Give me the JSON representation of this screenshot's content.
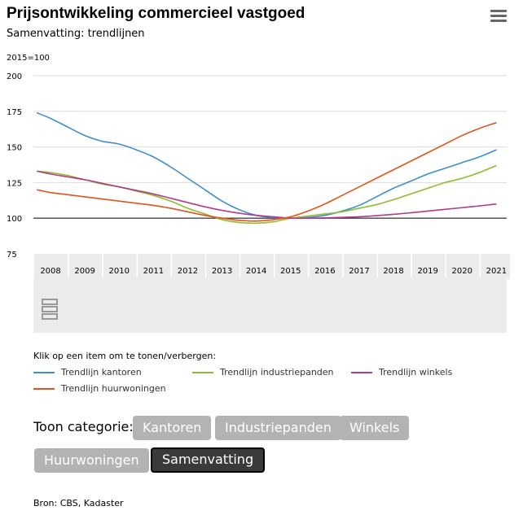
{
  "header": {
    "title": "Prijsontwikkeling commercieel vastgoed",
    "subtitle": "Samenvatting: trendlijnen"
  },
  "menu_icon": "hamburger-menu-icon",
  "chart_data": {
    "type": "line",
    "ylabel": "2015=100",
    "ylim": [
      75,
      200
    ],
    "yticks": [
      "75",
      "100",
      "125",
      "150",
      "175",
      "200"
    ],
    "xlim": [
      2007.5,
      2021.3
    ],
    "xtick_labels": [
      "2008",
      "2009",
      "2010",
      "2011",
      "2012",
      "2013",
      "2014",
      "2015",
      "2016",
      "2017",
      "2018",
      "2019",
      "2020",
      "2021"
    ],
    "xtick_positions": [
      2008,
      2009,
      2010,
      2011,
      2012,
      2013,
      2014,
      2015,
      2016,
      2017,
      2018,
      2019,
      2020,
      2021
    ],
    "reference_line": 100,
    "grid": true,
    "series": [
      {
        "name": "Trendlijn kantoren",
        "color": "#3d8fcb",
        "x": [
          2007.6,
          2008.0,
          2008.5,
          2009.0,
          2009.5,
          2010.0,
          2010.5,
          2011.0,
          2011.5,
          2012.0,
          2012.5,
          2013.0,
          2013.5,
          2014.0,
          2014.5,
          2015.0,
          2015.5,
          2016.0,
          2016.5,
          2017.0,
          2017.5,
          2018.0,
          2018.5,
          2019.0,
          2019.5,
          2020.0,
          2020.5,
          2021.0
        ],
        "y": [
          174,
          170,
          164,
          158,
          154,
          152,
          148,
          143,
          136,
          128,
          120,
          112,
          106,
          102,
          100.5,
          100,
          100.5,
          102,
          105,
          109,
          115,
          121,
          126,
          131,
          135,
          139,
          143,
          148
        ]
      },
      {
        "name": "Trendlijn industriepanden",
        "color": "#8dbd2e",
        "x": [
          2007.6,
          2008.0,
          2008.5,
          2009.0,
          2009.5,
          2010.0,
          2010.5,
          2011.0,
          2011.5,
          2012.0,
          2012.5,
          2013.0,
          2013.5,
          2014.0,
          2014.5,
          2015.0,
          2015.5,
          2016.0,
          2016.5,
          2017.0,
          2017.5,
          2018.0,
          2018.5,
          2019.0,
          2019.5,
          2020.0,
          2020.5,
          2021.0
        ],
        "y": [
          133,
          132,
          130,
          127,
          124,
          122,
          119,
          116,
          112,
          107,
          103,
          99,
          97,
          96.5,
          97.5,
          100,
          101.5,
          103,
          104.5,
          107,
          109.5,
          113,
          117,
          121,
          125,
          128,
          132,
          137
        ]
      },
      {
        "name": "Trendlijn winkels",
        "color": "#b03a8c",
        "x": [
          2007.6,
          2008.0,
          2008.5,
          2009.0,
          2009.5,
          2010.0,
          2010.5,
          2011.0,
          2011.5,
          2012.0,
          2012.5,
          2013.0,
          2013.5,
          2014.0,
          2014.5,
          2015.0,
          2015.5,
          2016.0,
          2016.5,
          2017.0,
          2017.5,
          2018.0,
          2018.5,
          2019.0,
          2019.5,
          2020.0,
          2020.5,
          2021.0
        ],
        "y": [
          133,
          131,
          129,
          127,
          124.5,
          122,
          119.5,
          117,
          114,
          111,
          108,
          105.5,
          103.5,
          102,
          101,
          100,
          100,
          100.2,
          100.6,
          101,
          101.8,
          102.7,
          103.8,
          105,
          106.2,
          107.4,
          108.6,
          110
        ]
      },
      {
        "name": "Trendlijn huurwoningen",
        "color": "#e2531d",
        "x": [
          2007.6,
          2008.0,
          2008.5,
          2009.0,
          2009.5,
          2010.0,
          2010.5,
          2011.0,
          2011.5,
          2012.0,
          2012.5,
          2013.0,
          2013.5,
          2014.0,
          2014.5,
          2015.0,
          2015.5,
          2016.0,
          2016.5,
          2017.0,
          2017.5,
          2018.0,
          2018.5,
          2019.0,
          2019.5,
          2020.0,
          2020.5,
          2021.0
        ],
        "y": [
          120,
          118,
          116.5,
          115,
          113.5,
          112,
          110.5,
          109,
          107,
          104.5,
          102,
          100,
          98.5,
          98,
          99,
          101,
          105,
          110,
          116,
          122,
          128,
          134,
          140,
          146,
          152,
          158,
          163,
          167
        ]
      }
    ]
  },
  "logo_label": "cbs",
  "legend": {
    "title": "Klik op een item om te tonen/verbergen:"
  },
  "category": {
    "label": "Toon categorie:",
    "buttons": [
      "Kantoren",
      "Industriepanden",
      "Winkels",
      "Huurwoningen",
      "Samenvatting"
    ],
    "active": "Samenvatting"
  },
  "source": "Bron: CBS, Kadaster"
}
